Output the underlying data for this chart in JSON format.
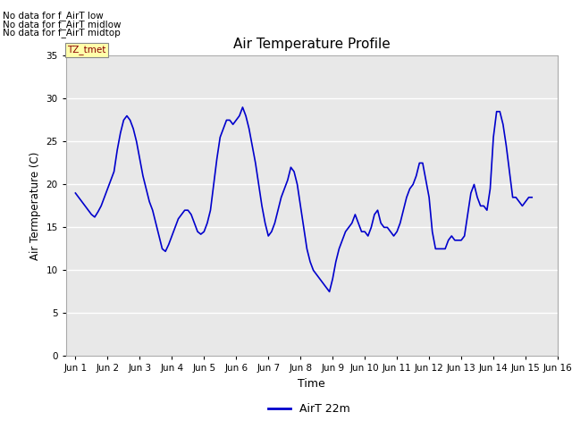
{
  "title": "Air Temperature Profile",
  "xlabel": "Time",
  "ylabel": "Air Termperature (C)",
  "ylim": [
    0,
    35
  ],
  "yticks": [
    0,
    5,
    10,
    15,
    20,
    25,
    30,
    35
  ],
  "fig_bg_color": "#ffffff",
  "plot_bg_color": "#e8e8e8",
  "line_color": "#0000cc",
  "line_width": 1.2,
  "legend_label": "AirT 22m",
  "no_data_texts": [
    "No data for f_AirT low",
    "No data for f_AirT midlow",
    "No data for f_AirT midtop"
  ],
  "tz_tmet_label": "TZ_tmet",
  "x_tick_labels": [
    "Jun 1",
    "Jun 2",
    "Jun 3",
    "Jun 4",
    "Jun 5",
    "Jun 6",
    "Jun 7",
    "Jun 8",
    "Jun 9",
    "Jun 10",
    "Jun 11",
    "Jun 12",
    "Jun 13",
    "Jun 14",
    "Jun 15",
    "Jun 16"
  ],
  "xlim": [
    0.7,
    15.7
  ],
  "x_tick_positions": [
    1,
    2,
    3,
    4,
    5,
    6,
    7,
    8,
    9,
    10,
    11,
    12,
    13,
    14,
    15,
    16
  ],
  "x_values": [
    1.0,
    1.1,
    1.2,
    1.3,
    1.4,
    1.5,
    1.6,
    1.7,
    1.8,
    1.9,
    2.0,
    2.1,
    2.2,
    2.3,
    2.4,
    2.5,
    2.6,
    2.7,
    2.8,
    2.9,
    3.0,
    3.1,
    3.2,
    3.3,
    3.4,
    3.5,
    3.6,
    3.7,
    3.8,
    3.9,
    4.0,
    4.1,
    4.2,
    4.3,
    4.4,
    4.5,
    4.6,
    4.7,
    4.8,
    4.9,
    5.0,
    5.1,
    5.2,
    5.3,
    5.4,
    5.5,
    5.6,
    5.7,
    5.8,
    5.9,
    6.0,
    6.1,
    6.2,
    6.3,
    6.4,
    6.5,
    6.6,
    6.7,
    6.8,
    6.9,
    7.0,
    7.1,
    7.2,
    7.3,
    7.4,
    7.5,
    7.6,
    7.7,
    7.8,
    7.9,
    8.0,
    8.1,
    8.2,
    8.3,
    8.4,
    8.5,
    8.6,
    8.7,
    8.8,
    8.9,
    9.0,
    9.1,
    9.2,
    9.3,
    9.4,
    9.5,
    9.6,
    9.7,
    9.8,
    9.9,
    10.0,
    10.1,
    10.2,
    10.3,
    10.4,
    10.5,
    10.6,
    10.7,
    10.8,
    10.9,
    11.0,
    11.1,
    11.2,
    11.3,
    11.4,
    11.5,
    11.6,
    11.7,
    11.8,
    11.9,
    12.0,
    12.1,
    12.2,
    12.3,
    12.4,
    12.5,
    12.6,
    12.7,
    12.8,
    12.9,
    13.0,
    13.1,
    13.2,
    13.3,
    13.4,
    13.5,
    13.6,
    13.7,
    13.8,
    13.9,
    14.0,
    14.1,
    14.2,
    14.3,
    14.4,
    14.5,
    14.6,
    14.7,
    14.8,
    14.9,
    15.0,
    15.1,
    15.2
  ],
  "y_values": [
    19.0,
    18.5,
    18.0,
    17.5,
    17.0,
    16.5,
    16.2,
    16.8,
    17.5,
    18.5,
    19.5,
    20.5,
    21.5,
    24.0,
    26.0,
    27.5,
    28.0,
    27.5,
    26.5,
    25.0,
    23.0,
    21.0,
    19.5,
    18.0,
    17.0,
    15.5,
    14.0,
    12.5,
    12.2,
    13.0,
    14.0,
    15.0,
    16.0,
    16.5,
    17.0,
    17.0,
    16.5,
    15.5,
    14.5,
    14.2,
    14.5,
    15.5,
    17.0,
    20.0,
    23.0,
    25.5,
    26.5,
    27.5,
    27.5,
    27.0,
    27.5,
    28.0,
    29.0,
    28.0,
    26.5,
    24.5,
    22.5,
    20.0,
    17.5,
    15.5,
    14.0,
    14.5,
    15.5,
    17.0,
    18.5,
    19.5,
    20.5,
    22.0,
    21.5,
    20.0,
    17.5,
    15.0,
    12.5,
    11.0,
    10.0,
    9.5,
    9.0,
    8.5,
    8.0,
    7.5,
    9.0,
    11.0,
    12.5,
    13.5,
    14.5,
    15.0,
    15.5,
    16.5,
    15.5,
    14.5,
    14.5,
    14.0,
    15.0,
    16.5,
    17.0,
    15.5,
    15.0,
    15.0,
    14.5,
    14.0,
    14.5,
    15.5,
    17.0,
    18.5,
    19.5,
    20.0,
    21.0,
    22.5,
    22.5,
    20.5,
    18.5,
    14.5,
    12.5,
    12.5,
    12.5,
    12.5,
    13.5,
    14.0,
    13.5,
    13.5,
    13.5,
    14.0,
    16.5,
    19.0,
    20.0,
    18.5,
    17.5,
    17.5,
    17.0,
    19.5,
    25.5,
    28.5,
    28.5,
    27.0,
    24.5,
    21.5,
    18.5,
    18.5,
    18.0,
    17.5,
    18.0,
    18.5,
    18.5
  ]
}
